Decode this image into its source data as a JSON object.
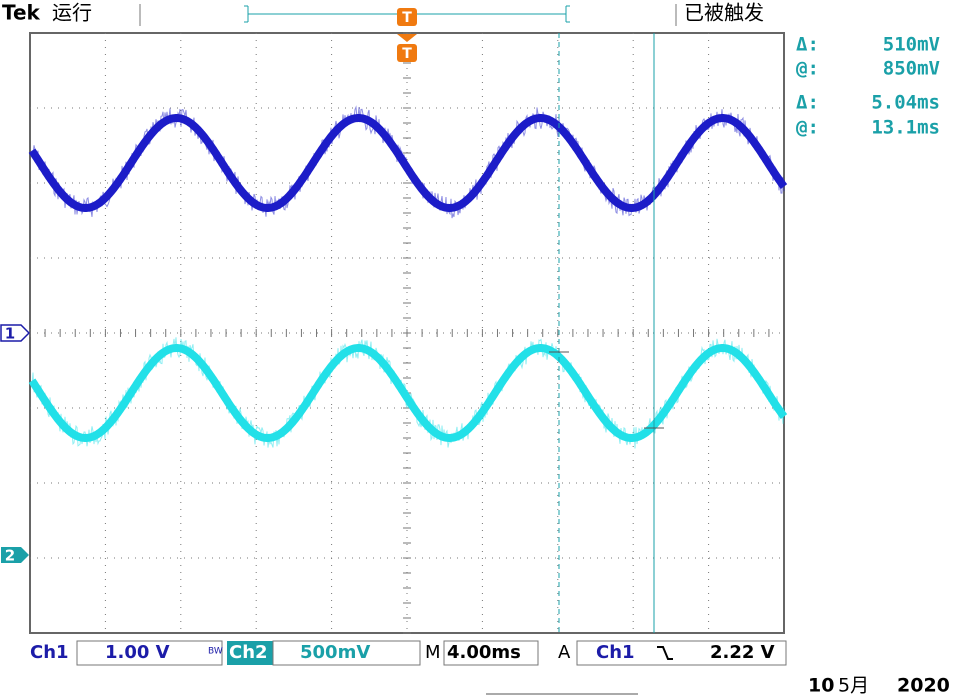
{
  "header": {
    "brand": "Tek",
    "status": "运行",
    "trigger_state": "已被触发"
  },
  "readouts": [
    {
      "label": "Δ:",
      "value": "510mV"
    },
    {
      "label": "@:",
      "value": "850mV"
    },
    {
      "label": "Δ:",
      "value": "5.04ms"
    },
    {
      "label": "@:",
      "value": "13.1ms"
    }
  ],
  "markers": {
    "ch1": "1",
    "ch2": "2",
    "trigger": "T"
  },
  "footer": {
    "ch1_label": "Ch1",
    "ch1_scale": "1.00 V",
    "bandwidth": "BW",
    "ch2_label": "Ch2",
    "ch2_scale": "500mV",
    "time_label": "M",
    "time_scale": "4.00ms",
    "trigger_label": "A",
    "trigger_source": "Ch1",
    "trigger_level": "2.22 V"
  },
  "date": {
    "day": "10",
    "month": "5月",
    "year": "2020"
  }
}
